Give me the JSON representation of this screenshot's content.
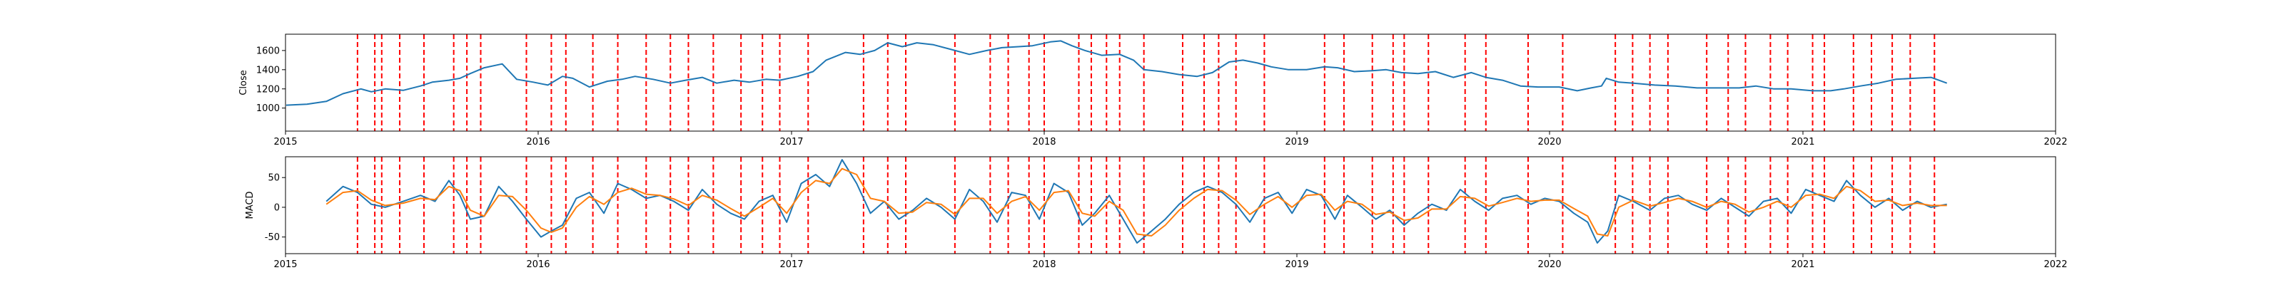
{
  "chart_data": [
    {
      "type": "line",
      "ylabel": "Close",
      "xlim": [
        "2015-01-01",
        "2022-01-01"
      ],
      "ylim": [
        760,
        1770
      ],
      "x_ticks": [
        "2015",
        "2016",
        "2017",
        "2018",
        "2019",
        "2020",
        "2021",
        "2022"
      ],
      "y_ticks": [
        1000,
        1200,
        1400,
        1600
      ],
      "colors": {
        "line": "#1f77b4",
        "markers": "#ff0000"
      },
      "series": [
        {
          "x": [
            "2015-01-02",
            "2015-02-01",
            "2015-03-01",
            "2015-03-25",
            "2015-04-20",
            "2015-05-05",
            "2015-05-25",
            "2015-06-20",
            "2015-07-15",
            "2015-08-01",
            "2015-08-25",
            "2015-09-10",
            "2015-09-25",
            "2015-10-15",
            "2015-11-10",
            "2015-12-01",
            "2015-12-25",
            "2016-01-15",
            "2016-02-05",
            "2016-02-20",
            "2016-03-15",
            "2016-04-10",
            "2016-05-01",
            "2016-05-20",
            "2016-06-15",
            "2016-07-10",
            "2016-08-01",
            "2016-08-25",
            "2016-09-15",
            "2016-10-10",
            "2016-11-01",
            "2016-11-25",
            "2016-12-15",
            "2017-01-10",
            "2017-02-01",
            "2017-02-20",
            "2017-03-20",
            "2017-04-10",
            "2017-05-01",
            "2017-05-20",
            "2017-06-10",
            "2017-07-01",
            "2017-07-25",
            "2017-08-20",
            "2017-09-15",
            "2017-10-10",
            "2017-11-01",
            "2017-11-25",
            "2017-12-15",
            "2018-01-10",
            "2018-01-25",
            "2018-02-10",
            "2018-03-01",
            "2018-03-25",
            "2018-04-20",
            "2018-05-10",
            "2018-05-25",
            "2018-06-20",
            "2018-07-15",
            "2018-08-10",
            "2018-09-01",
            "2018-09-25",
            "2018-10-15",
            "2018-11-05",
            "2018-11-25",
            "2018-12-20",
            "2019-01-15",
            "2019-02-10",
            "2019-03-01",
            "2019-03-25",
            "2019-04-20",
            "2019-05-10",
            "2019-06-01",
            "2019-06-25",
            "2019-07-20",
            "2019-08-15",
            "2019-09-10",
            "2019-10-01",
            "2019-10-25",
            "2019-11-20",
            "2019-12-15",
            "2020-01-15",
            "2020-02-10",
            "2020-03-01",
            "2020-03-16",
            "2020-03-23",
            "2020-04-10",
            "2020-05-01",
            "2020-06-01",
            "2020-07-01",
            "2020-08-01",
            "2020-09-01",
            "2020-10-01",
            "2020-10-25",
            "2020-11-20",
            "2020-12-15",
            "2021-01-15",
            "2021-02-10",
            "2021-03-01",
            "2021-03-25",
            "2021-04-20",
            "2021-05-15",
            "2021-06-10",
            "2021-07-05",
            "2021-07-28"
          ],
          "values": [
            1030,
            1040,
            1070,
            1150,
            1200,
            1170,
            1200,
            1185,
            1230,
            1270,
            1290,
            1310,
            1360,
            1420,
            1460,
            1300,
            1270,
            1240,
            1330,
            1310,
            1220,
            1280,
            1300,
            1330,
            1300,
            1260,
            1290,
            1320,
            1260,
            1290,
            1270,
            1300,
            1290,
            1330,
            1380,
            1500,
            1580,
            1560,
            1600,
            1680,
            1640,
            1680,
            1660,
            1610,
            1560,
            1600,
            1630,
            1640,
            1650,
            1690,
            1700,
            1650,
            1600,
            1550,
            1560,
            1500,
            1400,
            1380,
            1350,
            1330,
            1370,
            1480,
            1500,
            1470,
            1430,
            1400,
            1400,
            1430,
            1420,
            1380,
            1390,
            1400,
            1370,
            1360,
            1380,
            1320,
            1370,
            1320,
            1290,
            1230,
            1220,
            1220,
            1180,
            1210,
            1230,
            1310,
            1270,
            1260,
            1240,
            1230,
            1210,
            1210,
            1210,
            1230,
            1200,
            1200,
            1180,
            1180,
            1200,
            1230,
            1260,
            1300,
            1310,
            1320,
            1260
          ]
        }
      ],
      "vlines": [
        "2015-04-15",
        "2015-05-10",
        "2015-05-20",
        "2015-06-15",
        "2015-07-20",
        "2015-09-01",
        "2015-09-20",
        "2015-10-10",
        "2015-12-15",
        "2016-01-20",
        "2016-02-10",
        "2016-03-20",
        "2016-04-25",
        "2016-06-05",
        "2016-07-10",
        "2016-08-05",
        "2016-09-10",
        "2016-10-20",
        "2016-11-20",
        "2016-12-15",
        "2017-01-25",
        "2017-04-15",
        "2017-05-20",
        "2017-06-15",
        "2017-08-25",
        "2017-10-15",
        "2017-11-10",
        "2017-12-10",
        "2018-01-01",
        "2018-02-20",
        "2018-03-10",
        "2018-04-01",
        "2018-04-20",
        "2018-05-25",
        "2018-07-20",
        "2018-08-20",
        "2018-09-10",
        "2018-10-05",
        "2018-11-15",
        "2019-02-10",
        "2019-03-10",
        "2019-04-20",
        "2019-05-20",
        "2019-06-05",
        "2019-07-10",
        "2019-09-01",
        "2019-10-01",
        "2019-12-01",
        "2020-01-20",
        "2020-04-05",
        "2020-04-30",
        "2020-05-25",
        "2020-06-20",
        "2020-08-15",
        "2020-09-15",
        "2020-10-10",
        "2020-11-15",
        "2020-12-10",
        "2021-01-15",
        "2021-02-01",
        "2021-03-15",
        "2021-04-10",
        "2021-05-10",
        "2021-06-05",
        "2021-07-10"
      ]
    },
    {
      "type": "line",
      "ylabel": "MACD",
      "xlim": [
        "2015-01-01",
        "2022-01-01"
      ],
      "ylim": [
        -78,
        85
      ],
      "x_ticks": [
        "2015",
        "2016",
        "2017",
        "2018",
        "2019",
        "2020",
        "2021",
        "2022"
      ],
      "y_ticks": [
        -50,
        0,
        50
      ],
      "colors": {
        "macd": "#1f77b4",
        "signal": "#ff7f0e",
        "markers": "#ff0000"
      },
      "series": [
        {
          "x": [
            "2015-03-01",
            "2015-03-25",
            "2015-04-15",
            "2015-05-05",
            "2015-05-25",
            "2015-06-20",
            "2015-07-15",
            "2015-08-05",
            "2015-08-25",
            "2015-09-10",
            "2015-09-25",
            "2015-10-15",
            "2015-11-05",
            "2015-11-25",
            "2015-12-15",
            "2016-01-05",
            "2016-01-20",
            "2016-02-05",
            "2016-02-25",
            "2016-03-15",
            "2016-04-05",
            "2016-04-25",
            "2016-05-15",
            "2016-06-05",
            "2016-06-25",
            "2016-07-15",
            "2016-08-05",
            "2016-08-25",
            "2016-09-15",
            "2016-10-05",
            "2016-10-25",
            "2016-11-15",
            "2016-12-05",
            "2016-12-25",
            "2017-01-15",
            "2017-02-05",
            "2017-02-25",
            "2017-03-15",
            "2017-04-05",
            "2017-04-25",
            "2017-05-15",
            "2017-06-05",
            "2017-06-25",
            "2017-07-15",
            "2017-08-05",
            "2017-08-25",
            "2017-09-15",
            "2017-10-05",
            "2017-10-25",
            "2017-11-15",
            "2017-12-05",
            "2017-12-25",
            "2018-01-15",
            "2018-02-05",
            "2018-02-25",
            "2018-03-15",
            "2018-04-05",
            "2018-04-25",
            "2018-05-15",
            "2018-06-05",
            "2018-06-25",
            "2018-07-15",
            "2018-08-05",
            "2018-08-25",
            "2018-09-15",
            "2018-10-05",
            "2018-10-25",
            "2018-11-15",
            "2018-12-05",
            "2018-12-25",
            "2019-01-15",
            "2019-02-05",
            "2019-02-25",
            "2019-03-15",
            "2019-04-05",
            "2019-04-25",
            "2019-05-15",
            "2019-06-05",
            "2019-06-25",
            "2019-07-15",
            "2019-08-05",
            "2019-08-25",
            "2019-09-15",
            "2019-10-05",
            "2019-10-25",
            "2019-11-15",
            "2019-12-05",
            "2019-12-25",
            "2020-01-15",
            "2020-02-05",
            "2020-02-25",
            "2020-03-10",
            "2020-03-25",
            "2020-04-10",
            "2020-05-01",
            "2020-05-25",
            "2020-06-15",
            "2020-07-05",
            "2020-07-25",
            "2020-08-15",
            "2020-09-05",
            "2020-09-25",
            "2020-10-15",
            "2020-11-05",
            "2020-11-25",
            "2020-12-15",
            "2021-01-05",
            "2021-01-25",
            "2021-02-15",
            "2021-03-05",
            "2021-03-25",
            "2021-04-15",
            "2021-05-05",
            "2021-05-25",
            "2021-06-15",
            "2021-07-05",
            "2021-07-28"
          ],
          "values": [
            10,
            35,
            25,
            5,
            0,
            10,
            20,
            10,
            45,
            20,
            -20,
            -15,
            35,
            10,
            -20,
            -50,
            -40,
            -30,
            15,
            25,
            -10,
            40,
            30,
            15,
            20,
            10,
            -5,
            30,
            5,
            -10,
            -20,
            10,
            20,
            -25,
            40,
            55,
            35,
            80,
            40,
            -10,
            10,
            -20,
            -5,
            15,
            0,
            -20,
            30,
            10,
            -25,
            25,
            20,
            -20,
            40,
            25,
            -30,
            -10,
            20,
            -20,
            -60,
            -40,
            -20,
            5,
            25,
            35,
            25,
            5,
            -25,
            15,
            25,
            -10,
            30,
            20,
            -20,
            20,
            0,
            -20,
            -5,
            -30,
            -10,
            5,
            -5,
            30,
            10,
            -5,
            15,
            20,
            5,
            15,
            10,
            -10,
            -25,
            -60,
            -40,
            20,
            10,
            -5,
            15,
            20,
            5,
            -5,
            15,
            0,
            -15,
            10,
            15,
            -10,
            30,
            20,
            10,
            45,
            20,
            0,
            15,
            -5,
            10,
            0,
            5
          ]
        },
        {
          "x": [
            "2015-03-01",
            "2015-03-25",
            "2015-04-15",
            "2015-05-05",
            "2015-05-25",
            "2015-06-20",
            "2015-07-15",
            "2015-08-05",
            "2015-08-25",
            "2015-09-10",
            "2015-09-25",
            "2015-10-15",
            "2015-11-05",
            "2015-11-25",
            "2015-12-15",
            "2016-01-05",
            "2016-01-20",
            "2016-02-05",
            "2016-02-25",
            "2016-03-15",
            "2016-04-05",
            "2016-04-25",
            "2016-05-15",
            "2016-06-05",
            "2016-06-25",
            "2016-07-15",
            "2016-08-05",
            "2016-08-25",
            "2016-09-15",
            "2016-10-05",
            "2016-10-25",
            "2016-11-15",
            "2016-12-05",
            "2016-12-25",
            "2017-01-15",
            "2017-02-05",
            "2017-02-25",
            "2017-03-15",
            "2017-04-05",
            "2017-04-25",
            "2017-05-15",
            "2017-06-05",
            "2017-06-25",
            "2017-07-15",
            "2017-08-05",
            "2017-08-25",
            "2017-09-15",
            "2017-10-05",
            "2017-10-25",
            "2017-11-15",
            "2017-12-05",
            "2017-12-25",
            "2018-01-15",
            "2018-02-05",
            "2018-02-25",
            "2018-03-15",
            "2018-04-05",
            "2018-04-25",
            "2018-05-15",
            "2018-06-05",
            "2018-06-25",
            "2018-07-15",
            "2018-08-05",
            "2018-08-25",
            "2018-09-15",
            "2018-10-05",
            "2018-10-25",
            "2018-11-15",
            "2018-12-05",
            "2018-12-25",
            "2019-01-15",
            "2019-02-05",
            "2019-02-25",
            "2019-03-15",
            "2019-04-05",
            "2019-04-25",
            "2019-05-15",
            "2019-06-05",
            "2019-06-25",
            "2019-07-15",
            "2019-08-05",
            "2019-08-25",
            "2019-09-15",
            "2019-10-05",
            "2019-10-25",
            "2019-11-15",
            "2019-12-05",
            "2019-12-25",
            "2020-01-15",
            "2020-02-05",
            "2020-02-25",
            "2020-03-10",
            "2020-03-25",
            "2020-04-10",
            "2020-05-01",
            "2020-05-25",
            "2020-06-15",
            "2020-07-05",
            "2020-07-25",
            "2020-08-15",
            "2020-09-05",
            "2020-09-25",
            "2020-10-15",
            "2020-11-05",
            "2020-11-25",
            "2020-12-15",
            "2021-01-05",
            "2021-01-25",
            "2021-02-15",
            "2021-03-05",
            "2021-03-25",
            "2021-04-15",
            "2021-05-05",
            "2021-05-25",
            "2021-06-15",
            "2021-07-05",
            "2021-07-28"
          ],
          "values": [
            5,
            25,
            28,
            12,
            3,
            7,
            15,
            13,
            35,
            28,
            -5,
            -15,
            20,
            18,
            -5,
            -35,
            -42,
            -35,
            0,
            18,
            5,
            25,
            32,
            22,
            20,
            14,
            3,
            20,
            12,
            -2,
            -15,
            0,
            15,
            -10,
            25,
            45,
            40,
            65,
            55,
            15,
            10,
            -10,
            -8,
            8,
            5,
            -12,
            15,
            15,
            -10,
            10,
            18,
            -5,
            25,
            28,
            -10,
            -15,
            10,
            -5,
            -45,
            -48,
            -30,
            -5,
            15,
            30,
            28,
            12,
            -12,
            5,
            18,
            0,
            20,
            22,
            -5,
            10,
            5,
            -12,
            -8,
            -22,
            -18,
            -3,
            -3,
            18,
            15,
            2,
            8,
            15,
            10,
            12,
            12,
            -2,
            -15,
            -45,
            -48,
            0,
            12,
            2,
            8,
            15,
            10,
            0,
            10,
            5,
            -8,
            0,
            10,
            0,
            20,
            22,
            15,
            35,
            28,
            10,
            12,
            3,
            7,
            3,
            3
          ]
        }
      ],
      "vlines": [
        "2015-04-15",
        "2015-05-10",
        "2015-05-20",
        "2015-06-15",
        "2015-07-20",
        "2015-09-01",
        "2015-09-20",
        "2015-10-10",
        "2015-12-15",
        "2016-01-20",
        "2016-02-10",
        "2016-03-20",
        "2016-04-25",
        "2016-06-05",
        "2016-07-10",
        "2016-08-05",
        "2016-09-10",
        "2016-10-20",
        "2016-11-20",
        "2016-12-15",
        "2017-01-25",
        "2017-04-15",
        "2017-05-20",
        "2017-06-15",
        "2017-08-25",
        "2017-10-15",
        "2017-11-10",
        "2017-12-10",
        "2018-01-01",
        "2018-02-20",
        "2018-03-10",
        "2018-04-01",
        "2018-04-20",
        "2018-05-25",
        "2018-07-20",
        "2018-08-20",
        "2018-09-10",
        "2018-10-05",
        "2018-11-15",
        "2019-02-10",
        "2019-03-10",
        "2019-04-20",
        "2019-05-20",
        "2019-06-05",
        "2019-07-10",
        "2019-09-01",
        "2019-10-01",
        "2019-12-01",
        "2020-01-20",
        "2020-04-05",
        "2020-04-30",
        "2020-05-25",
        "2020-06-20",
        "2020-08-15",
        "2020-09-15",
        "2020-10-10",
        "2020-11-15",
        "2020-12-10",
        "2021-01-15",
        "2021-02-01",
        "2021-03-15",
        "2021-04-10",
        "2021-05-10",
        "2021-06-05",
        "2021-07-10"
      ]
    }
  ]
}
